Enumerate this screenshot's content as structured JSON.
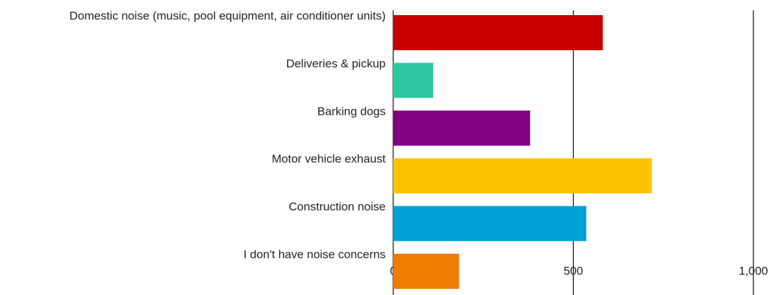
{
  "chart_data": {
    "type": "barh",
    "categories": [
      "Domestic noise (music, pool equipment, air conditioner units)",
      "Deliveries & pickup",
      "Barking dogs",
      "Motor vehicle exhaust",
      "Construction noise",
      "I don't have noise concerns"
    ],
    "values": [
      582,
      111,
      380,
      718,
      536,
      183
    ],
    "colors": [
      "#c80000",
      "#2dc7a2",
      "#800080",
      "#fdc300",
      "#00a1d8",
      "#f07c00"
    ],
    "xlim": [
      0,
      1000
    ],
    "xticks": [
      0,
      500,
      {
        "value": 1000,
        "label": "1,000"
      }
    ],
    "grid": true
  }
}
